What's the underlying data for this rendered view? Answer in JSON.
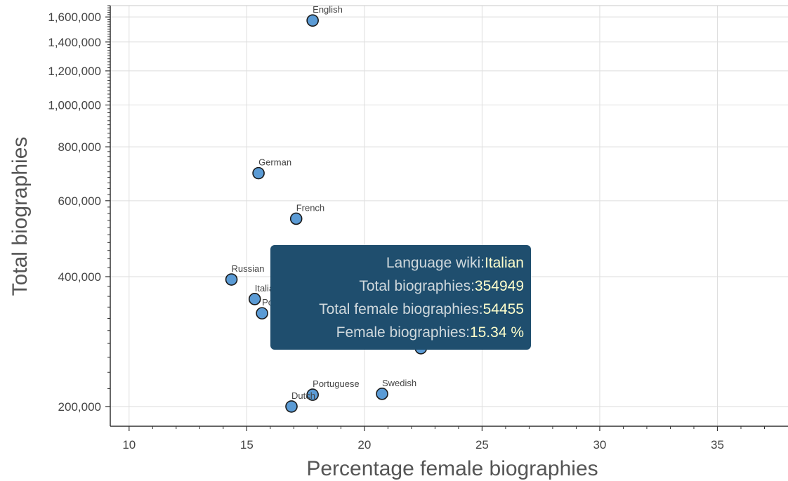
{
  "chart_data": {
    "type": "scatter",
    "xlabel": "Percentage female biographies",
    "ylabel": "Total biographies",
    "xlim": [
      9.2,
      38
    ],
    "ylim": [
      180000,
      1700000
    ],
    "yscale": "log",
    "xticks": [
      10,
      15,
      20,
      25,
      30,
      35
    ],
    "yticks": [
      200000,
      400000,
      600000,
      800000,
      1000000,
      1200000,
      1400000,
      1600000
    ],
    "ytick_labels": [
      "200,000",
      "400,000",
      "600,000",
      "800,000",
      "1,000,000",
      "1,200,000",
      "1,400,000",
      "1,600,000"
    ],
    "grid": true,
    "marker_color": "#5b9bd5",
    "points": [
      {
        "label": "English",
        "x": 17.8,
        "y": 1570000
      },
      {
        "label": "German",
        "x": 15.5,
        "y": 695000
      },
      {
        "label": "French",
        "x": 17.1,
        "y": 545000
      },
      {
        "label": "Russian",
        "x": 14.35,
        "y": 394000
      },
      {
        "label": "Italian",
        "x": 15.34,
        "y": 354949
      },
      {
        "label": "Polish",
        "x": 15.65,
        "y": 329000
      },
      {
        "label": "",
        "x": 22.4,
        "y": 273000
      },
      {
        "label": "Portuguese",
        "x": 17.8,
        "y": 213000
      },
      {
        "label": "Swedish",
        "x": 20.75,
        "y": 214000
      },
      {
        "label": "Dutch",
        "x": 16.9,
        "y": 200000
      }
    ]
  },
  "tooltip": {
    "rows": [
      {
        "key": "Language wiki:",
        "value": "Italian"
      },
      {
        "key": "Total biographies:",
        "value": "354949"
      },
      {
        "key": "Total female biographies:",
        "value": "54455"
      },
      {
        "key": "Female biographies:",
        "value": "15.34 %"
      }
    ]
  }
}
